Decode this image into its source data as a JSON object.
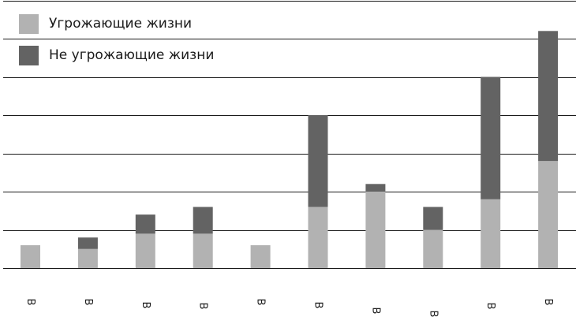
{
  "colors": {
    "life_threatening": "#b2b2b2",
    "non_life_threatening": "#636363",
    "gridline": "#1a1a1a",
    "tick_label": "#1a1a1a"
  },
  "chart_data": {
    "type": "bar",
    "stacked": true,
    "categories": [
      "B",
      "B",
      "B",
      "B",
      "B",
      "B",
      "B",
      "B",
      "B",
      "B"
    ],
    "series": [
      {
        "name": "Угрожающие жизни",
        "color": "#b2b2b2",
        "values": [
          0.6,
          0.5,
          0.9,
          0.9,
          0.6,
          1.6,
          2.0,
          1.0,
          1.8,
          2.8
        ]
      },
      {
        "name": "Не угрожающие жизни",
        "color": "#636363",
        "values": [
          0.0,
          0.3,
          0.5,
          0.7,
          0.0,
          2.4,
          0.2,
          0.6,
          3.2,
          3.4
        ]
      }
    ],
    "ylim": [
      0,
      7
    ],
    "grid": true,
    "gridline_step": 1,
    "legend_position": "top-left"
  }
}
